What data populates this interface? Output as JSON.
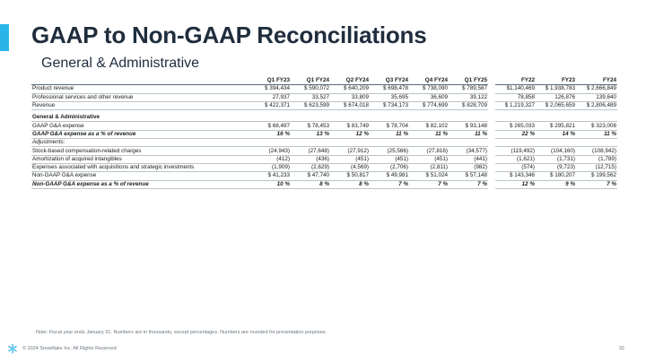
{
  "header": {
    "title": "GAAP to Non-GAAP Reconciliations",
    "subtitle": "General & Administrative"
  },
  "table": {
    "columns": [
      "Q1 FY23",
      "Q1 FY24",
      "Q2 FY24",
      "Q3 FY24",
      "Q4 FY24",
      "Q1 FY25",
      "FY22",
      "FY23",
      "FY24"
    ],
    "rows": [
      {
        "label": "Product revenue",
        "values": [
          "$ 394,434",
          "$ 590,072",
          "$ 640,209",
          "$ 698,478",
          "$ 738,090",
          "$ 789,587",
          "$1,140,469",
          "$ 1,938,783",
          "$ 2,666,849"
        ]
      },
      {
        "label": "Professional services and other revenue",
        "values": [
          "27,937",
          "33,527",
          "33,809",
          "35,695",
          "36,609",
          "39,122",
          "78,858",
          "126,876",
          "139,640"
        ]
      },
      {
        "label": "Revenue",
        "values": [
          "$ 422,371",
          "$ 623,599",
          "$ 674,018",
          "$ 734,173",
          "$ 774,699",
          "$ 828,709",
          "$ 1,219,327",
          "$ 2,065,659",
          "$ 2,806,489"
        ]
      },
      {
        "label": "General & Administrative",
        "values": [
          "",
          "",
          "",
          "",
          "",
          "",
          "",
          "",
          ""
        ]
      },
      {
        "label": "GAAP G&A expense",
        "values": [
          "$ 68,497",
          "$ 78,453",
          "$ 83,749",
          "$ 78,704",
          "$ 82,102",
          "$ 93,148",
          "$ 265,033",
          "$ 295,821",
          "$ 323,008"
        ]
      },
      {
        "label": "GAAP G&A expense as a % of revenue",
        "values": [
          "16 %",
          "13 %",
          "12 %",
          "11 %",
          "11 %",
          "11 %",
          "22 %",
          "14 %",
          "11 %"
        ]
      },
      {
        "label": "Adjustments:",
        "values": [
          "",
          "",
          "",
          "",
          "",
          "",
          "",
          "",
          ""
        ]
      },
      {
        "label": "Stock-based compensation-related charges",
        "values": [
          "(24,943)",
          "(27,648)",
          "(27,912)",
          "(25,566)",
          "(27,816)",
          "(34,577)",
          "(119,492)",
          "(104,160)",
          "(108,942)"
        ]
      },
      {
        "label": "Amortization of acquired intangibles",
        "values": [
          "(412)",
          "(436)",
          "(451)",
          "(451)",
          "(451)",
          "(441)",
          "(1,621)",
          "(1,731)",
          "(1,789)"
        ]
      },
      {
        "label": "Expenses associated with acquisitions and strategic investments",
        "values": [
          "(1,909)",
          "(2,629)",
          "(4,569)",
          "(2,706)",
          "(2,811)",
          "(982)",
          "(574)",
          "(9,723)",
          "(12,715)"
        ]
      },
      {
        "label": "Non-GAAP G&A expense",
        "values": [
          "$ 41,233",
          "$ 47,740",
          "$ 50,817",
          "$ 49,981",
          "$ 51,024",
          "$ 57,148",
          "$ 143,346",
          "$ 180,207",
          "$ 199,562"
        ]
      },
      {
        "label": "Non-GAAP G&A expense as a % of revenue",
        "values": [
          "10 %",
          "8 %",
          "8 %",
          "7 %",
          "7 %",
          "7 %",
          "12 %",
          "9 %",
          "7 %"
        ]
      }
    ]
  },
  "footnote": "Note: Fiscal year ends January 31. Numbers are in thousands, except percentages. Numbers are rounded for presentation purposes.",
  "footer": {
    "copyright": "© 2024 Snowflake Inc. All Rights Reserved",
    "page_number": "32",
    "logo_icon": "snowflake-icon"
  },
  "colors": {
    "accent": "#29b5e8",
    "title_text": "#1f2d3d",
    "rule": "#b8c4cc"
  }
}
